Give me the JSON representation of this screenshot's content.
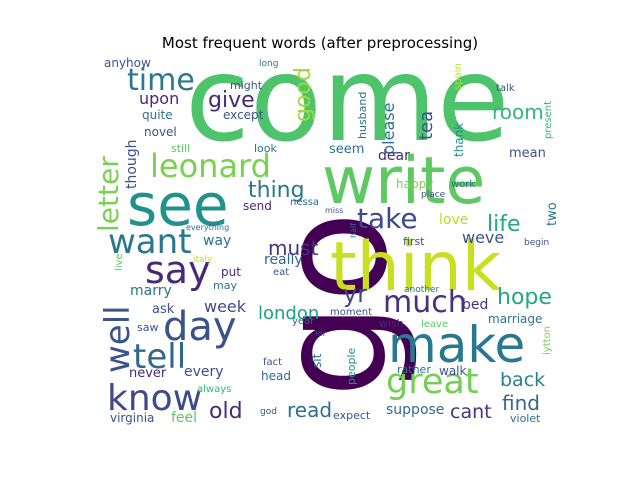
{
  "chart_data": {
    "type": "wordcloud",
    "title": "Most frequent words (after preprocessing)",
    "palette": [
      "#440154",
      "#3b528b",
      "#21918c",
      "#5ec962",
      "#fde725"
    ],
    "background": "#ffffff",
    "words": [
      {
        "text": "come",
        "color": "#4dc36b"
      },
      {
        "text": "go",
        "color": "#440154"
      },
      {
        "text": "write",
        "color": "#5ec962"
      },
      {
        "text": "think",
        "color": "#c8e020"
      },
      {
        "text": "see",
        "color": "#21918c"
      },
      {
        "text": "make",
        "color": "#2a788e"
      },
      {
        "text": "leonard",
        "color": "#7ad151"
      },
      {
        "text": "say",
        "color": "#482878"
      },
      {
        "text": "day",
        "color": "#3b528b"
      },
      {
        "text": "well",
        "color": "#3b528b"
      },
      {
        "text": "tell",
        "color": "#31688e"
      },
      {
        "text": "know",
        "color": "#3e4a89"
      },
      {
        "text": "want",
        "color": "#2a788e"
      },
      {
        "text": "great",
        "color": "#73d055"
      },
      {
        "text": "much",
        "color": "#46337e"
      },
      {
        "text": "time",
        "color": "#2a788e"
      },
      {
        "text": "letter",
        "color": "#7ad151"
      },
      {
        "text": "take",
        "color": "#3e4a89"
      },
      {
        "text": "thing",
        "color": "#2a788e"
      },
      {
        "text": "hope",
        "color": "#22a884"
      },
      {
        "text": "give",
        "color": "#482878"
      },
      {
        "text": "good",
        "color": "#9fda3a"
      },
      {
        "text": "room",
        "color": "#35b779"
      },
      {
        "text": "life",
        "color": "#22a884"
      },
      {
        "text": "must",
        "color": "#46337e"
      },
      {
        "text": "yr",
        "color": "#3e4a89"
      },
      {
        "text": "london",
        "color": "#1f9e89"
      },
      {
        "text": "find",
        "color": "#31688e"
      },
      {
        "text": "back",
        "color": "#26828e"
      },
      {
        "text": "old",
        "color": "#482878"
      },
      {
        "text": "read",
        "color": "#2c728e"
      },
      {
        "text": "cant",
        "color": "#46337e"
      },
      {
        "text": "tea",
        "color": "#3b528b"
      },
      {
        "text": "upon",
        "color": "#482878"
      },
      {
        "text": "please",
        "color": "#2c728e"
      },
      {
        "text": "week",
        "color": "#3e4a89"
      },
      {
        "text": "weve",
        "color": "#3b528b"
      },
      {
        "text": "love",
        "color": "#b5de2b"
      },
      {
        "text": "dear",
        "color": "#482878"
      },
      {
        "text": "seem",
        "color": "#2c728e"
      },
      {
        "text": "marry",
        "color": "#2c728e"
      },
      {
        "text": "really",
        "color": "#31688e"
      },
      {
        "text": "way",
        "color": "#2c728e"
      },
      {
        "text": "mean",
        "color": "#3b528b"
      },
      {
        "text": "though",
        "color": "#3b528b"
      },
      {
        "text": "never",
        "color": "#482878"
      },
      {
        "text": "every",
        "color": "#3e4a89"
      },
      {
        "text": "suppose",
        "color": "#31688e"
      },
      {
        "text": "anyhow",
        "color": "#3b528b"
      },
      {
        "text": "might",
        "color": "#3b528b"
      },
      {
        "text": "long",
        "color": "#2c728e"
      },
      {
        "text": "except",
        "color": "#3b528b"
      },
      {
        "text": "quite",
        "color": "#2c728e"
      },
      {
        "text": "novel",
        "color": "#3b528b"
      },
      {
        "text": "still",
        "color": "#5ec962"
      },
      {
        "text": "look",
        "color": "#2c728e"
      },
      {
        "text": "husband",
        "color": "#2c728e"
      },
      {
        "text": "thank",
        "color": "#21918c"
      },
      {
        "text": "spain",
        "color": "#bddf26"
      },
      {
        "text": "talk",
        "color": "#3b528b"
      },
      {
        "text": "present",
        "color": "#35b779"
      },
      {
        "text": "happy",
        "color": "#7ad151"
      },
      {
        "text": "work",
        "color": "#2c728e"
      },
      {
        "text": "send",
        "color": "#482878"
      },
      {
        "text": "nessa",
        "color": "#31688e"
      },
      {
        "text": "miss",
        "color": "#3b528b"
      },
      {
        "text": "half",
        "color": "#31688e"
      },
      {
        "text": "place",
        "color": "#3b528b"
      },
      {
        "text": "two",
        "color": "#2c728e"
      },
      {
        "text": "everything",
        "color": "#2c728e"
      },
      {
        "text": "first",
        "color": "#3b528b"
      },
      {
        "text": "begin",
        "color": "#3b528b"
      },
      {
        "text": "live",
        "color": "#5ec962"
      },
      {
        "text": "italy",
        "color": "#c8e020"
      },
      {
        "text": "put",
        "color": "#482878"
      },
      {
        "text": "eat",
        "color": "#3b528b"
      },
      {
        "text": "may",
        "color": "#2c728e"
      },
      {
        "text": "ask",
        "color": "#3b528b"
      },
      {
        "text": "bed",
        "color": "#46337e"
      },
      {
        "text": "marriage",
        "color": "#2c728e"
      },
      {
        "text": "another",
        "color": "#2c728e"
      },
      {
        "text": "saw",
        "color": "#3b528b"
      },
      {
        "text": "year",
        "color": "#31688e"
      },
      {
        "text": "moment",
        "color": "#3b528b"
      },
      {
        "text": "wish",
        "color": "#482878"
      },
      {
        "text": "leave",
        "color": "#5ec962"
      },
      {
        "text": "lytton",
        "color": "#7ad151"
      },
      {
        "text": "mr",
        "color": "#3b528b"
      },
      {
        "text": "sit",
        "color": "#2c728e"
      },
      {
        "text": "people",
        "color": "#21918c"
      },
      {
        "text": "always",
        "color": "#35b779"
      },
      {
        "text": "fact",
        "color": "#3b528b"
      },
      {
        "text": "head",
        "color": "#31688e"
      },
      {
        "text": "rather",
        "color": "#2c728e"
      },
      {
        "text": "walk",
        "color": "#3b528b"
      },
      {
        "text": "virginia",
        "color": "#3b528b"
      },
      {
        "text": "feel",
        "color": "#5ec962"
      },
      {
        "text": "god",
        "color": "#3b528b"
      },
      {
        "text": "expect",
        "color": "#3b528b"
      },
      {
        "text": "violet",
        "color": "#2c728e"
      }
    ]
  }
}
